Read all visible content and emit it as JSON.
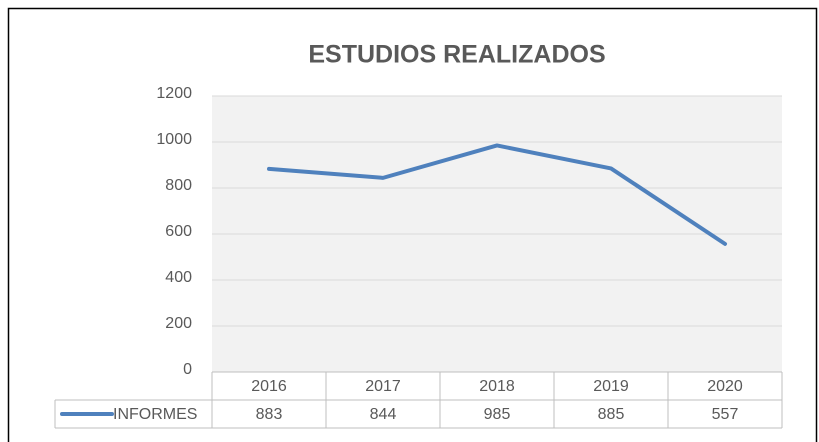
{
  "chart_data": {
    "type": "line",
    "title": "ESTUDIOS REALIZADOS",
    "categories": [
      "2016",
      "2017",
      "2018",
      "2019",
      "2020"
    ],
    "series": [
      {
        "name": "INFORMES",
        "color": "#4f81bd",
        "values": [
          883,
          844,
          985,
          885,
          557
        ]
      }
    ],
    "ylim": [
      0,
      1200
    ],
    "yticks": [
      0,
      200,
      400,
      600,
      800,
      1000,
      1200
    ],
    "grid": true
  }
}
